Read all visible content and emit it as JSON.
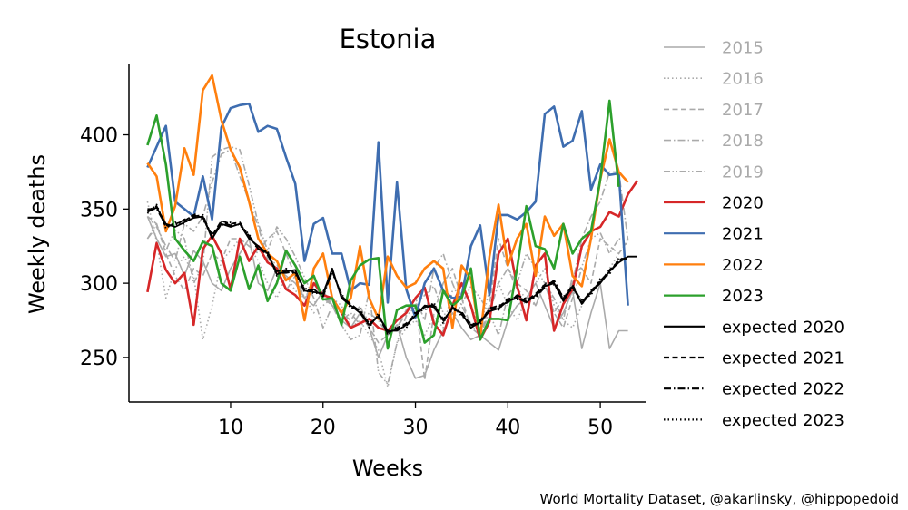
{
  "chart_data": {
    "type": "line",
    "title": "Estonia",
    "xlabel": "Weeks",
    "ylabel": "Weekly deaths",
    "xlim": [
      -1,
      55
    ],
    "ylim": [
      220,
      448
    ],
    "xticks": [
      10,
      20,
      30,
      40,
      50
    ],
    "yticks": [
      250,
      300,
      350,
      400
    ],
    "grid": false,
    "legend_placement": "right",
    "credit": "World Mortality Dataset, @akarlinsky, @hippopedoid",
    "series": [
      {
        "name": "2015",
        "color": "#aaaaaa",
        "dash": "solid",
        "legend_text_color": "#aaaaaa",
        "values": [
          345,
          330,
          318,
          320,
          305,
          322,
          315,
          300,
          295,
          310,
          320,
          330,
          300,
          295,
          310,
          305,
          300,
          290,
          285,
          295,
          285,
          275,
          270,
          280,
          270,
          250,
          265,
          272,
          250,
          236,
          238,
          255,
          268,
          280,
          270,
          262,
          265,
          260,
          255,
          275,
          285,
          290,
          300,
          285,
          270,
          280,
          295,
          256,
          280,
          300,
          256,
          268,
          268
        ]
      },
      {
        "name": "2016",
        "color": "#aaaaaa",
        "dash": "dotted",
        "legend_text_color": "#aaaaaa",
        "values": [
          355,
          328,
          290,
          310,
          318,
          305,
          262,
          285,
          315,
          322,
          330,
          325,
          315,
          300,
          290,
          305,
          295,
          290,
          280,
          285,
          290,
          285,
          270,
          275,
          265,
          255,
          230,
          260,
          270,
          275,
          265,
          278,
          270,
          295,
          300,
          285,
          270,
          295,
          300,
          285,
          275,
          290,
          300,
          310,
          285,
          275,
          270,
          285,
          295,
          300,
          310,
          320,
          328
        ]
      },
      {
        "name": "2017",
        "color": "#aaaaaa",
        "dash": "dashed",
        "legend_text_color": "#aaaaaa",
        "values": [
          345,
          340,
          320,
          305,
          295,
          310,
          305,
          320,
          315,
          330,
          330,
          325,
          320,
          330,
          335,
          320,
          305,
          290,
          300,
          290,
          285,
          280,
          275,
          285,
          270,
          260,
          265,
          270,
          280,
          290,
          235,
          280,
          300,
          310,
          290,
          270,
          265,
          285,
          330,
          310,
          300,
          295,
          285,
          300,
          280,
          270,
          290,
          310,
          300,
          330,
          325,
          320,
          329
        ]
      },
      {
        "name": "2018",
        "color": "#aaaaaa",
        "dash": "dashdot",
        "legend_text_color": "#aaaaaa",
        "values": [
          330,
          338,
          325,
          315,
          340,
          335,
          345,
          368,
          387,
          390,
          372,
          355,
          338,
          316,
          313,
          295,
          305,
          290,
          296,
          292,
          285,
          275,
          280,
          272,
          280,
          275,
          265,
          270,
          282,
          290,
          275,
          310,
          320,
          300,
          285,
          272,
          265,
          280,
          300,
          310,
          296,
          290,
          285,
          300,
          280,
          290,
          300,
          330,
          345,
          355,
          375,
          375,
          329
        ]
      },
      {
        "name": "2019",
        "color": "#aaaaaa",
        "dash": "dashdotdot",
        "legend_text_color": "#aaaaaa",
        "values": [
          330,
          340,
          322,
          336,
          330,
          300,
          312,
          385,
          390,
          392,
          390,
          366,
          340,
          322,
          338,
          330,
          318,
          304,
          290,
          270,
          285,
          272,
          262,
          265,
          295,
          240,
          232,
          260,
          278,
          284,
          292,
          298,
          280,
          275,
          286,
          298,
          290,
          280,
          265,
          292,
          300,
          320,
          310,
          300,
          290,
          275,
          305,
          311,
          330,
          334,
          320,
          330,
          329
        ]
      },
      {
        "name": "2020",
        "color": "#d62728",
        "dash": "solid",
        "legend_text_color": "#000000",
        "values": [
          294,
          327,
          309,
          300,
          307,
          272,
          323,
          332,
          320,
          296,
          330,
          315,
          325,
          314,
          310,
          296,
          292,
          285,
          300,
          292,
          290,
          280,
          270,
          273,
          276,
          270,
          268,
          275,
          280,
          290,
          297,
          273,
          265,
          285,
          300,
          285,
          262,
          274,
          320,
          330,
          298,
          275,
          312,
          320,
          268,
          286,
          296,
          325,
          335,
          338,
          348,
          345,
          360,
          369
        ]
      },
      {
        "name": "2021",
        "color": "#3e6db0",
        "dash": "solid",
        "legend_text_color": "#000000",
        "values": [
          378,
          392,
          406,
          355,
          350,
          345,
          372,
          343,
          405,
          418,
          420,
          421,
          402,
          406,
          404,
          385,
          367,
          315,
          340,
          344,
          320,
          320,
          295,
          300,
          299,
          395,
          287,
          368,
          296,
          277,
          300,
          310,
          295,
          290,
          291,
          325,
          339,
          292,
          346,
          346,
          343,
          348,
          355,
          414,
          419,
          392,
          396,
          416,
          363,
          380,
          373,
          374,
          285
        ]
      },
      {
        "name": "2022",
        "color": "#ff7f0e",
        "dash": "solid",
        "legend_text_color": "#000000",
        "values": [
          381,
          372,
          335,
          352,
          391,
          373,
          430,
          440,
          410,
          390,
          378,
          355,
          330,
          320,
          315,
          302,
          307,
          275,
          310,
          320,
          290,
          280,
          290,
          325,
          290,
          276,
          318,
          305,
          297,
          300,
          310,
          315,
          310,
          270,
          312,
          303,
          263,
          318,
          353,
          312,
          330,
          340,
          305,
          345,
          332,
          340,
          305,
          298,
          330,
          370,
          397,
          375,
          368
        ]
      },
      {
        "name": "2023",
        "color": "#2ca02c",
        "dash": "solid",
        "legend_text_color": "#000000",
        "values": [
          393,
          413,
          380,
          330,
          322,
          315,
          328,
          325,
          300,
          295,
          318,
          296,
          312,
          288,
          300,
          322,
          312,
          300,
          305,
          289,
          290,
          272,
          302,
          312,
          316,
          317,
          256,
          282,
          285,
          285,
          260,
          265,
          295,
          285,
          290,
          310,
          262,
          276,
          276,
          275,
          310,
          352,
          325,
          323,
          310,
          340,
          320,
          330,
          335,
          370,
          423,
          365
        ]
      },
      {
        "name": "expected 2020",
        "color": "#000000",
        "dash": "solid",
        "legend_text_color": "#000000",
        "values": [
          348,
          351,
          340,
          338,
          341,
          344,
          345,
          330,
          340,
          338,
          340,
          330,
          325,
          320,
          306,
          308,
          309,
          295,
          294,
          293,
          310,
          290,
          285,
          280,
          272,
          278,
          268,
          268,
          272,
          278,
          285,
          284,
          275,
          283,
          280,
          270,
          274,
          281,
          283,
          288,
          290,
          287,
          292,
          298,
          300,
          288,
          298,
          286,
          294,
          300,
          308,
          314,
          318,
          318
        ]
      },
      {
        "name": "expected 2021",
        "color": "#000000",
        "dash": "dashed",
        "legend_text_color": "#000000",
        "values": [
          349,
          352,
          338,
          340,
          342,
          346,
          344,
          332,
          342,
          340,
          341,
          331,
          324,
          319,
          308,
          309,
          307,
          296,
          295,
          292,
          309,
          291,
          286,
          281,
          273,
          277,
          267,
          269,
          273,
          279,
          284,
          285,
          276,
          282,
          281,
          271,
          275,
          282,
          284,
          289,
          291,
          288,
          293,
          299,
          301,
          289,
          299,
          287,
          295,
          301,
          309,
          315,
          318
        ]
      },
      {
        "name": "expected 2022",
        "color": "#000000",
        "dash": "dashdot",
        "legend_text_color": "#000000",
        "values": [
          350,
          350,
          339,
          339,
          343,
          345,
          346,
          331,
          341,
          339,
          340,
          332,
          323,
          321,
          307,
          307,
          308,
          294,
          296,
          291,
          308,
          292,
          284,
          282,
          271,
          279,
          266,
          270,
          271,
          280,
          283,
          286,
          274,
          284,
          279,
          272,
          273,
          283,
          285,
          287,
          292,
          289,
          291,
          297,
          302,
          290,
          297,
          288,
          293,
          302,
          307,
          316,
          317
        ]
      },
      {
        "name": "expected 2023",
        "color": "#000000",
        "dash": "dotted",
        "legend_text_color": "#000000",
        "values": [
          347,
          353,
          337,
          341,
          340,
          347,
          343,
          333,
          339,
          341,
          339,
          333,
          322,
          322,
          305,
          310,
          306,
          297,
          293,
          294,
          307,
          293,
          283,
          283,
          270,
          280,
          265,
          271,
          270,
          281,
          282,
          287,
          273,
          285,
          278,
          273,
          272,
          284,
          282,
          290,
          289,
          290,
          290,
          300,
          299,
          291,
          296,
          289,
          292,
          303,
          306,
          317,
          316
        ]
      }
    ]
  }
}
